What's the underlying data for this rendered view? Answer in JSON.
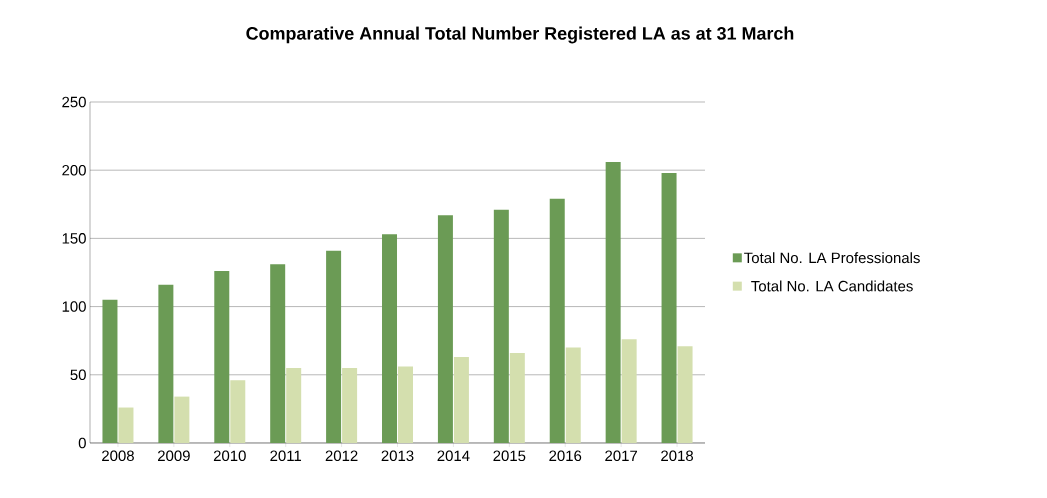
{
  "chart_data": {
    "type": "bar",
    "title": "Comparative Annual Total Number Registered LA as at 31 March",
    "categories": [
      "2008",
      "2009",
      "2010",
      "2011",
      "2012",
      "2013",
      "2014",
      "2015",
      "2016",
      "2017",
      "2018"
    ],
    "series": [
      {
        "name": "Total No. LA Professionals",
        "color": "#6b9b55",
        "values": [
          105,
          116,
          126,
          131,
          141,
          153,
          167,
          171,
          179,
          206,
          198
        ]
      },
      {
        "name": "Total No. LA Candidates",
        "color": "#d4dfae",
        "values": [
          26,
          34,
          46,
          55,
          55,
          56,
          63,
          66,
          70,
          76,
          71
        ]
      }
    ],
    "ylim": [
      0,
      250
    ],
    "yticks": [
      0,
      50,
      100,
      150,
      200,
      250
    ],
    "grid": "y",
    "legend": "right"
  }
}
